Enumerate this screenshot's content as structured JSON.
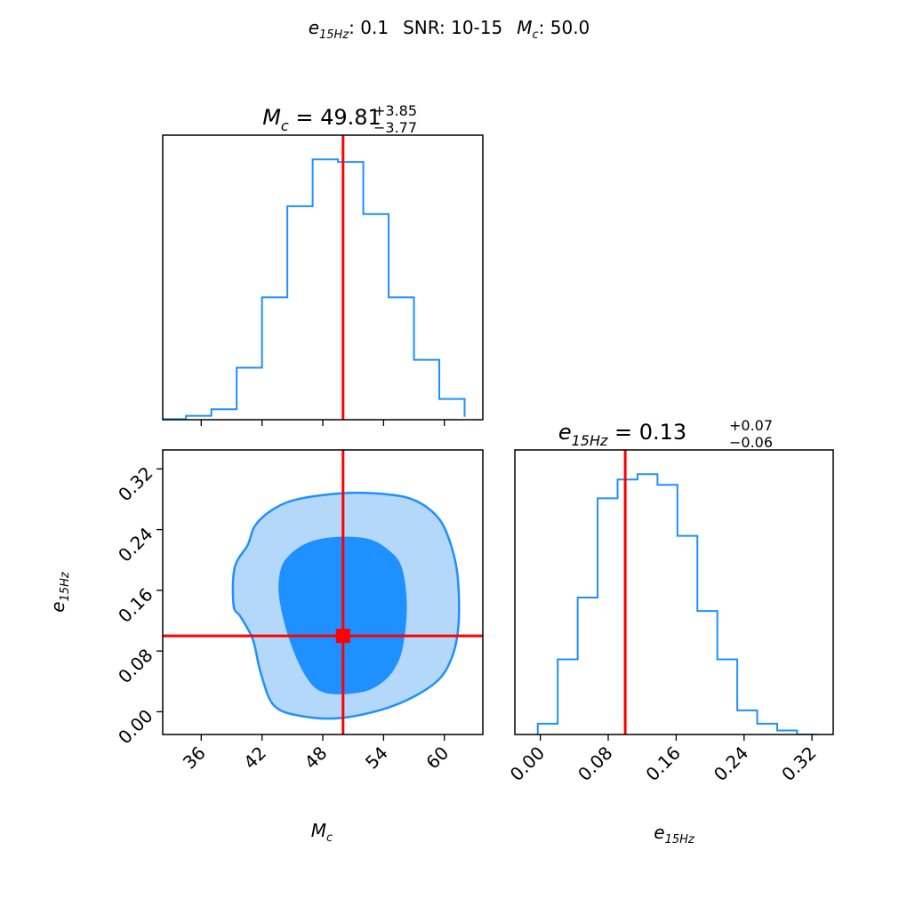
{
  "suptitle": {
    "e_label": "e",
    "e_sub": "15Hz",
    "e_value": ": 0.1",
    "snr_label": "SNR: 10-15",
    "mc_label": "M",
    "mc_sub": "c",
    "mc_value": ": 50.0"
  },
  "colors": {
    "series": "#1e90ff",
    "inner_fill": "#1e90ff",
    "outer_fill": "#b4d8fa",
    "truth": "#ff0000"
  },
  "chart_data": [
    {
      "type": "histogram",
      "panel": "Mc-marginal",
      "title": {
        "symbol": "M",
        "sub": "c",
        "value": " = 49.81",
        "plus": "+3.85",
        "minus": "−3.77"
      },
      "bin_edges": [
        32.0,
        34.5,
        37.0,
        39.5,
        42.0,
        44.5,
        47.0,
        49.5,
        52.0,
        54.5,
        57.0,
        59.5,
        62.0
      ],
      "counts": [
        0.2,
        1.5,
        4,
        20,
        47,
        82,
        100,
        99,
        79,
        47,
        23,
        8,
        1.1
      ],
      "xlim": [
        32.2,
        63.8
      ],
      "truth": 50.0,
      "xticks": [
        36,
        42,
        48,
        54,
        60
      ]
    },
    {
      "type": "contour",
      "panel": "Mc-e15Hz-joint",
      "xlabel": {
        "symbol": "M",
        "sub": "c"
      },
      "ylabel": {
        "symbol": "e",
        "sub": "15Hz"
      },
      "xlim": [
        32.2,
        63.8
      ],
      "ylim": [
        -0.03,
        0.345
      ],
      "xticks": [
        36,
        42,
        48,
        54,
        60
      ],
      "xtick_labels": [
        "36",
        "42",
        "48",
        "54",
        "60"
      ],
      "yticks": [
        0.0,
        0.08,
        0.16,
        0.24,
        0.32
      ],
      "ytick_labels": [
        "0.00",
        "0.08",
        "0.16",
        "0.24",
        "0.32"
      ],
      "truth": {
        "x": 50.0,
        "y": 0.1
      },
      "outer_contour": [
        [
          40.6,
          0.22
        ],
        [
          41.3,
          0.245
        ],
        [
          43.0,
          0.266
        ],
        [
          45.5,
          0.28
        ],
        [
          50.0,
          0.288
        ],
        [
          54.0,
          0.287
        ],
        [
          57.0,
          0.279
        ],
        [
          59.3,
          0.257
        ],
        [
          60.5,
          0.226
        ],
        [
          61.3,
          0.18
        ],
        [
          61.4,
          0.115
        ],
        [
          60.7,
          0.07
        ],
        [
          59.0,
          0.037
        ],
        [
          55.0,
          0.008
        ],
        [
          50.0,
          -0.008
        ],
        [
          46.0,
          -0.006
        ],
        [
          43.2,
          0.008
        ],
        [
          41.9,
          0.05
        ],
        [
          41.1,
          0.095
        ],
        [
          39.9,
          0.125
        ],
        [
          39.2,
          0.14
        ],
        [
          39.3,
          0.19
        ]
      ],
      "inner_contour": [
        [
          44.6,
          0.205
        ],
        [
          46.4,
          0.222
        ],
        [
          49.0,
          0.23
        ],
        [
          52.4,
          0.228
        ],
        [
          54.5,
          0.213
        ],
        [
          55.8,
          0.19
        ],
        [
          56.3,
          0.14
        ],
        [
          55.9,
          0.085
        ],
        [
          55.0,
          0.055
        ],
        [
          53.5,
          0.035
        ],
        [
          51.5,
          0.025
        ],
        [
          48.2,
          0.025
        ],
        [
          46.4,
          0.045
        ],
        [
          44.7,
          0.095
        ],
        [
          43.7,
          0.15
        ],
        [
          43.8,
          0.185
        ]
      ]
    },
    {
      "type": "histogram",
      "panel": "e15Hz-marginal",
      "title": {
        "symbol": "e",
        "sub": "15Hz",
        "value": " = 0.13",
        "plus": "+0.07",
        "minus": "−0.06"
      },
      "xlabel": {
        "symbol": "e",
        "sub": "15Hz"
      },
      "bin_edges": [
        -0.003,
        0.0205,
        0.044,
        0.0675,
        0.091,
        0.1145,
        0.138,
        0.1615,
        0.185,
        0.2085,
        0.232,
        0.2555,
        0.279,
        0.3025,
        0.326
      ],
      "counts": [
        4,
        28,
        51,
        88,
        95,
        97,
        93,
        74,
        46,
        28,
        9,
        4,
        1.5,
        0
      ],
      "xlim": [
        -0.03,
        0.345
      ],
      "truth": 0.1,
      "xticks": [
        0.0,
        0.08,
        0.16,
        0.24,
        0.32
      ],
      "xtick_labels": [
        "0.00",
        "0.08",
        "0.16",
        "0.24",
        "0.32"
      ]
    }
  ]
}
